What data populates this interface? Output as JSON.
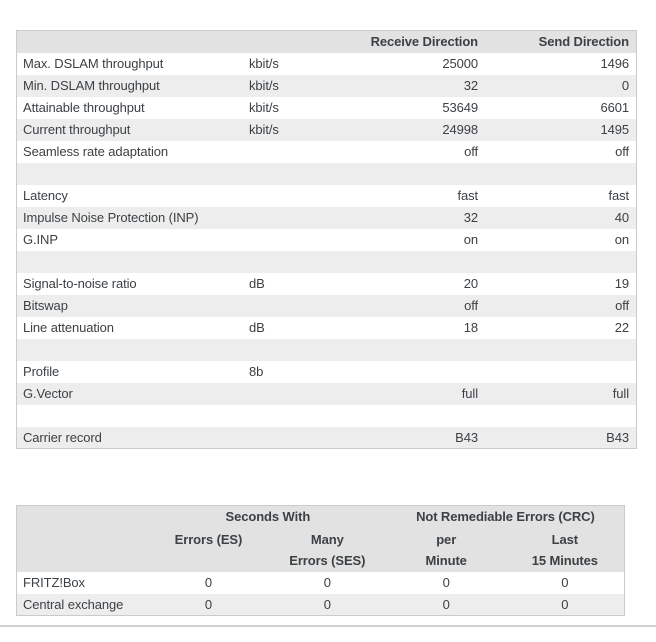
{
  "colors": {
    "header_bg": "#e2e2e2",
    "row_bg": "#ffffff",
    "row_alt_bg": "#ededed",
    "border": "#cbcbcb",
    "text": "#3c4145",
    "divider": "#cfcfcf"
  },
  "dsl_table": {
    "headers": {
      "receive": "Receive Direction",
      "send": "Send Direction"
    },
    "rows": [
      {
        "label": "Max. DSLAM throughput",
        "unit": "kbit/s",
        "receive": "25000",
        "send": "1496"
      },
      {
        "label": "Min. DSLAM throughput",
        "unit": "kbit/s",
        "receive": "32",
        "send": "0"
      },
      {
        "label": "Attainable throughput",
        "unit": "kbit/s",
        "receive": "53649",
        "send": "6601"
      },
      {
        "label": "Current throughput",
        "unit": "kbit/s",
        "receive": "24998",
        "send": "1495"
      },
      {
        "label": "Seamless rate adaptation",
        "unit": "",
        "receive": "off",
        "send": "off"
      },
      {
        "spacer": true
      },
      {
        "label": "Latency",
        "unit": "",
        "receive": "fast",
        "send": "fast"
      },
      {
        "label": "Impulse Noise Protection (INP)",
        "unit": "",
        "receive": "32",
        "send": "40"
      },
      {
        "label": "G.INP",
        "unit": "",
        "receive": "on",
        "send": "on"
      },
      {
        "spacer": true
      },
      {
        "label": "Signal-to-noise ratio",
        "unit": "dB",
        "receive": "20",
        "send": "19"
      },
      {
        "label": "Bitswap",
        "unit": "",
        "receive": "off",
        "send": "off"
      },
      {
        "label": "Line attenuation",
        "unit": "dB",
        "receive": "18",
        "send": "22"
      },
      {
        "spacer": true
      },
      {
        "label": "Profile",
        "unit": "8b",
        "receive": "",
        "send": ""
      },
      {
        "label": "G.Vector",
        "unit": "",
        "receive": "full",
        "send": "full"
      },
      {
        "spacer": true
      },
      {
        "label": "Carrier record",
        "unit": "",
        "receive": "B43",
        "send": "B43"
      }
    ]
  },
  "error_table": {
    "group_headers": {
      "seconds_with": "Seconds With",
      "crc": "Not Remediable Errors (CRC)"
    },
    "column_headers": [
      {
        "line1": "Errors (ES)",
        "line2": ""
      },
      {
        "line1": "Many",
        "line2": "Errors (SES)"
      },
      {
        "line1": "per",
        "line2": "Minute"
      },
      {
        "line1": "Last",
        "line2": "15 Minutes"
      }
    ],
    "rows": [
      {
        "label": "FRITZ!Box",
        "values": [
          "0",
          "0",
          "0",
          "0"
        ]
      },
      {
        "label": "Central exchange",
        "values": [
          "0",
          "0",
          "0",
          "0"
        ]
      }
    ]
  }
}
